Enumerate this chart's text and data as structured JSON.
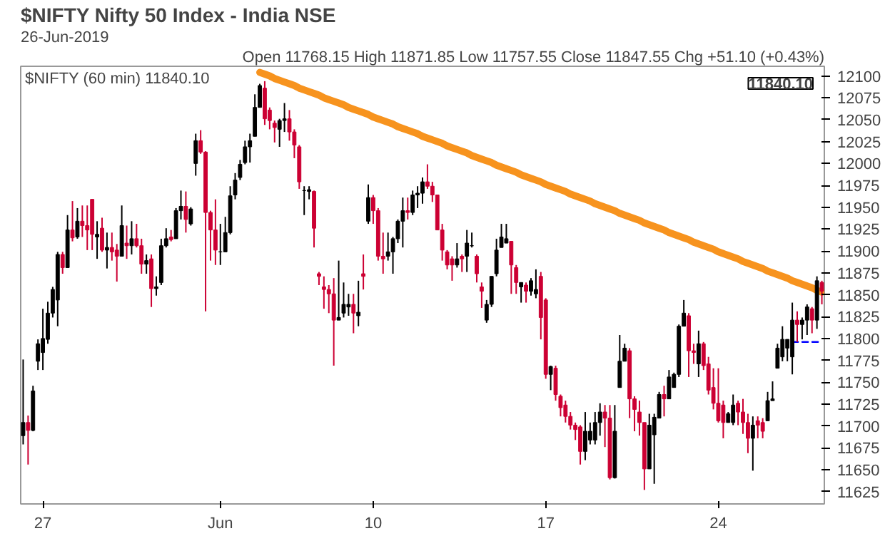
{
  "chart_data": {
    "type": "candlestick",
    "title": "$NIFTY Nifty 50 Index - India NSE",
    "subtitle": "26-Jun-2019",
    "annotations": [
      "Open 11768.15 High 11871.85 Low 11757.55 Close 11847.55 Chg +51.10 (+0.43%)",
      "$NIFTY (60 min) 11840.10",
      "11840.10"
    ],
    "categories": [
      null,
      null,
      null,
      null,
      "27",
      null,
      null,
      null,
      null,
      null,
      null,
      null,
      null,
      null,
      null,
      null,
      null,
      null,
      null,
      null,
      null,
      null,
      null,
      null,
      null,
      null,
      null,
      null,
      null,
      null,
      null,
      null,
      null,
      null,
      null,
      null,
      null,
      null,
      null,
      null,
      "Jun",
      null,
      null,
      null,
      null,
      null,
      null,
      null,
      null,
      null,
      null,
      null,
      null,
      null,
      null,
      null,
      null,
      null,
      null,
      null,
      null,
      null,
      null,
      null,
      null,
      null,
      null,
      null,
      null,
      null,
      null,
      "10",
      null,
      null,
      null,
      null,
      null,
      null,
      null,
      null,
      null,
      null,
      null,
      null,
      null,
      null,
      null,
      null,
      null,
      null,
      null,
      null,
      null,
      null,
      null,
      null,
      null,
      null,
      null,
      null,
      null,
      null,
      null,
      null,
      null,
      null,
      "17",
      null,
      null,
      null,
      null,
      null,
      null,
      null,
      null,
      null,
      null,
      null,
      null,
      null,
      null,
      null,
      null,
      null,
      null,
      null,
      null,
      null,
      null,
      null,
      null,
      null,
      null,
      null,
      null,
      null,
      null,
      null,
      null,
      null,
      null,
      "24",
      null,
      null,
      null,
      null,
      null,
      null,
      null,
      null,
      null,
      null,
      null,
      null,
      null,
      null,
      null,
      null,
      null,
      null,
      null,
      null,
      null
    ],
    "ohlc": [
      [
        11689,
        11776,
        11679,
        11704
      ],
      [
        11704,
        11712,
        11656,
        11695
      ],
      [
        11695,
        11746,
        11694,
        11740
      ],
      [
        11774,
        11799,
        11764,
        11794
      ],
      [
        11784,
        11834,
        11764,
        11800
      ],
      [
        11799,
        11842,
        11794,
        11829
      ],
      [
        11829,
        11859,
        11824,
        11856
      ],
      [
        11844,
        11899,
        11814,
        11896
      ],
      [
        11896,
        11899,
        11874,
        11881
      ],
      [
        11881,
        11941,
        11881,
        11924
      ],
      [
        11924,
        11957,
        11911,
        11915
      ],
      [
        11916,
        11949,
        11914,
        11934
      ],
      [
        11934,
        11952,
        11916,
        11929
      ],
      [
        11929,
        11952,
        11901,
        11924
      ],
      [
        11959,
        11959,
        11901,
        11919
      ],
      [
        11916,
        11934,
        11891,
        11919
      ],
      [
        11926,
        11938,
        11899,
        11901
      ],
      [
        11901,
        11921,
        11880,
        11904
      ],
      [
        11904,
        11921,
        11889,
        11899
      ],
      [
        11901,
        11908,
        11865,
        11894
      ],
      [
        11894,
        11952,
        11894,
        11929
      ],
      [
        11909,
        11929,
        11891,
        11906
      ],
      [
        11906,
        11934,
        11896,
        11914
      ],
      [
        11914,
        11931,
        11904,
        11906
      ],
      [
        11906,
        11914,
        11874,
        11885
      ],
      [
        11885,
        11896,
        11874,
        11889
      ],
      [
        11891,
        11896,
        11836,
        11857
      ],
      [
        11857,
        11871,
        11849,
        11859
      ],
      [
        11864,
        11914,
        11861,
        11906
      ],
      [
        11906,
        11926,
        11904,
        11914
      ],
      [
        11916,
        11924,
        11911,
        11913
      ],
      [
        11914,
        11949,
        11914,
        11946
      ],
      [
        11946,
        11969,
        11936,
        11951
      ],
      [
        11951,
        11968,
        11921,
        11936
      ],
      [
        11931,
        11950,
        11929,
        11948
      ],
      [
        12000,
        12034,
        11986,
        12026
      ],
      [
        12026,
        12038,
        12011,
        12013
      ],
      [
        12013,
        12014,
        11831,
        11944
      ],
      [
        11944,
        11946,
        11889,
        11924
      ],
      [
        11924,
        11959,
        11884,
        11901
      ],
      [
        11899,
        11931,
        11884,
        11899
      ],
      [
        11899,
        11939,
        11899,
        11921
      ],
      [
        11921,
        11974,
        11919,
        11963
      ],
      [
        11964,
        11989,
        11959,
        11981
      ],
      [
        11984,
        12004,
        11981,
        11999
      ],
      [
        12001,
        12026,
        11999,
        12019
      ],
      [
        12019,
        12034,
        12001,
        12026
      ],
      [
        12031,
        12079,
        12031,
        12064
      ],
      [
        12064,
        12091,
        12064,
        12089
      ],
      [
        12086,
        12094,
        12044,
        12051
      ],
      [
        12061,
        12064,
        12039,
        12049
      ],
      [
        12046,
        12049,
        12024,
        12041
      ],
      [
        12039,
        12051,
        12019,
        12049
      ],
      [
        12049,
        12069,
        12036,
        12051
      ],
      [
        12051,
        12061,
        12026,
        12036
      ],
      [
        12036,
        12039,
        12006,
        12021
      ],
      [
        12019,
        12021,
        11971,
        11979
      ],
      [
        11969,
        11974,
        11941,
        11969
      ],
      [
        11968,
        11974,
        11959,
        11970
      ],
      [
        11968,
        11969,
        11904,
        11926
      ],
      [
        11874,
        11876,
        11861,
        11871
      ],
      [
        11859,
        11871,
        11834,
        11856
      ],
      [
        11856,
        11861,
        11829,
        11851
      ],
      [
        11851,
        11869,
        11769,
        11821
      ],
      [
        11821,
        11889,
        11821,
        11824
      ],
      [
        11829,
        11864,
        11824,
        11839
      ],
      [
        11836,
        11851,
        11826,
        11839
      ],
      [
        11839,
        11851,
        11806,
        11829
      ],
      [
        11826,
        11866,
        11814,
        11830
      ],
      [
        11874,
        11896,
        11856,
        11871
      ],
      [
        11934,
        11976,
        11931,
        11961
      ],
      [
        11961,
        11964,
        11931,
        11946
      ],
      [
        11946,
        11949,
        11889,
        11894
      ],
      [
        11894,
        11921,
        11874,
        11891
      ],
      [
        11894,
        11921,
        11889,
        11899
      ],
      [
        11899,
        11916,
        11874,
        11914
      ],
      [
        11914,
        11936,
        11909,
        11934
      ],
      [
        11934,
        11961,
        11904,
        11946
      ],
      [
        11946,
        11961,
        11936,
        11944
      ],
      [
        11944,
        11969,
        11941,
        11964
      ],
      [
        11964,
        11974,
        11949,
        11966
      ],
      [
        11966,
        11984,
        11954,
        11979
      ],
      [
        11979,
        11999,
        11971,
        11974
      ],
      [
        11974,
        11979,
        11956,
        11964
      ],
      [
        11964,
        11964,
        11924,
        11924
      ],
      [
        11924,
        11931,
        11889,
        11901
      ],
      [
        11899,
        11901,
        11879,
        11884
      ],
      [
        11891,
        11894,
        11866,
        11884
      ],
      [
        11884,
        11909,
        11881,
        11891
      ],
      [
        11894,
        11896,
        11876,
        11891
      ],
      [
        11894,
        11924,
        11876,
        11909
      ],
      [
        11906,
        11921,
        11904,
        11906
      ],
      [
        11894,
        11896,
        11864,
        11874
      ],
      [
        11859,
        11864,
        11835,
        11854
      ],
      [
        11821,
        11844,
        11818,
        11839
      ],
      [
        11839,
        11871,
        11836,
        11871
      ],
      [
        11874,
        11914,
        11871,
        11901
      ],
      [
        11904,
        11931,
        11904,
        11916
      ],
      [
        11909,
        11931,
        11909,
        11914
      ],
      [
        11911,
        11911,
        11851,
        11884
      ],
      [
        11881,
        11884,
        11851,
        11864
      ],
      [
        11859,
        11864,
        11841,
        11864
      ],
      [
        11861,
        11864,
        11841,
        11854
      ],
      [
        11854,
        11869,
        11849,
        11866
      ],
      [
        11851,
        11879,
        11846,
        11856
      ],
      [
        11871,
        11876,
        11799,
        11824
      ],
      [
        11844,
        11846,
        11754,
        11759
      ],
      [
        11759,
        11769,
        11741,
        11768
      ],
      [
        11766,
        11769,
        11729,
        11736
      ],
      [
        11734,
        11736,
        11711,
        11721
      ],
      [
        11724,
        11729,
        11704,
        11711
      ],
      [
        11711,
        11716,
        11696,
        11701
      ],
      [
        11701,
        11704,
        11684,
        11696
      ],
      [
        11699,
        11701,
        11656,
        11671
      ],
      [
        11671,
        11716,
        11661,
        11694
      ],
      [
        11684,
        11704,
        11679,
        11694
      ],
      [
        11684,
        11716,
        11679,
        11704
      ],
      [
        11704,
        11726,
        11689,
        11716
      ],
      [
        11716,
        11724,
        11676,
        11709
      ],
      [
        11709,
        11724,
        11639,
        11641
      ],
      [
        11641,
        11724,
        11640,
        11694
      ],
      [
        11744,
        11804,
        11744,
        11774
      ],
      [
        11774,
        11794,
        11774,
        11789
      ],
      [
        11786,
        11789,
        11709,
        11731
      ],
      [
        11731,
        11734,
        11694,
        11719
      ],
      [
        11716,
        11729,
        11689,
        11704
      ],
      [
        11704,
        11704,
        11627,
        11651
      ],
      [
        11651,
        11714,
        11651,
        11701
      ],
      [
        11690,
        11714,
        11634,
        11710
      ],
      [
        11709,
        11739,
        11709,
        11736
      ],
      [
        11736,
        11746,
        11711,
        11731
      ],
      [
        11731,
        11764,
        11731,
        11756
      ],
      [
        11744,
        11761,
        11744,
        11759
      ],
      [
        11759,
        11816,
        11756,
        11814
      ],
      [
        11814,
        11844,
        11814,
        11829
      ],
      [
        11826,
        11829,
        11756,
        11786
      ],
      [
        11786,
        11794,
        11771,
        11784
      ],
      [
        11771,
        11809,
        11756,
        11794
      ],
      [
        11794,
        11796,
        11764,
        11769
      ],
      [
        11771,
        11779,
        11736,
        11741
      ],
      [
        11744,
        11766,
        11719,
        11726
      ],
      [
        11726,
        11766,
        11704,
        11706
      ],
      [
        11724,
        11729,
        11686,
        11704
      ],
      [
        11704,
        11716,
        11704,
        11714
      ],
      [
        11704,
        11736,
        11701,
        11724
      ],
      [
        11726,
        11729,
        11701,
        11716
      ],
      [
        11716,
        11731,
        11691,
        11704
      ],
      [
        11704,
        11714,
        11669,
        11686
      ],
      [
        11686,
        11711,
        11649,
        11701
      ],
      [
        11706,
        11711,
        11686,
        11701
      ],
      [
        11704,
        11709,
        11686,
        11694
      ],
      [
        11706,
        11739,
        11706,
        11729
      ],
      [
        11729,
        11751,
        11729,
        11731
      ],
      [
        11766,
        11794,
        11766,
        11789
      ],
      [
        11779,
        11814,
        11774,
        11799
      ],
      [
        11789,
        11799,
        11774,
        11799
      ],
      [
        11779,
        11841,
        11759,
        11821
      ],
      [
        11821,
        11831,
        11796,
        11816
      ],
      [
        11816,
        11824,
        11799,
        11821
      ],
      [
        11821,
        11839,
        11804,
        11836
      ],
      [
        11834,
        11836,
        11806,
        11821
      ],
      [
        11821,
        11871,
        11811,
        11866
      ],
      [
        11864,
        11866,
        11839,
        11854
      ]
    ],
    "colors": [
      "#000000",
      "#cc0033",
      "#000000",
      "#000000",
      "#000000",
      "#000000",
      "#000000",
      "#000000",
      "#cc0033",
      "#000000",
      "#cc0033",
      "#000000",
      "#cc0033",
      "#cc0033",
      "#cc0033",
      "#000000",
      "#cc0033",
      "#000000",
      "#cc0033",
      "#cc0033",
      "#000000",
      "#cc0033",
      "#000000",
      "#cc0033",
      "#cc0033",
      "#000000",
      "#cc0033",
      "#000000",
      "#000000",
      "#000000",
      "#cc0033",
      "#000000",
      "#000000",
      "#cc0033",
      "#000000",
      "#000000",
      "#cc0033",
      "#cc0033",
      "#cc0033",
      "#cc0033",
      "#000000",
      "#000000",
      "#000000",
      "#000000",
      "#000000",
      "#000000",
      "#000000",
      "#000000",
      "#000000",
      "#cc0033",
      "#cc0033",
      "#cc0033",
      "#000000",
      "#000000",
      "#cc0033",
      "#cc0033",
      "#cc0033",
      "#000000",
      "#000000",
      "#cc0033",
      "#cc0033",
      "#cc0033",
      "#cc0033",
      "#cc0033",
      "#000000",
      "#000000",
      "#000000",
      "#cc0033",
      "#000000",
      "#cc0033",
      "#000000",
      "#cc0033",
      "#cc0033",
      "#cc0033",
      "#000000",
      "#000000",
      "#000000",
      "#000000",
      "#cc0033",
      "#000000",
      "#000000",
      "#000000",
      "#cc0033",
      "#cc0033",
      "#cc0033",
      "#cc0033",
      "#cc0033",
      "#cc0033",
      "#000000",
      "#cc0033",
      "#000000",
      "#000000",
      "#cc0033",
      "#cc0033",
      "#000000",
      "#000000",
      "#000000",
      "#000000",
      "#000000",
      "#cc0033",
      "#cc0033",
      "#000000",
      "#cc0033",
      "#000000",
      "#000000",
      "#cc0033",
      "#cc0033",
      "#000000",
      "#cc0033",
      "#cc0033",
      "#cc0033",
      "#cc0033",
      "#cc0033",
      "#cc0033",
      "#000000",
      "#000000",
      "#000000",
      "#000000",
      "#cc0033",
      "#cc0033",
      "#000000",
      "#000000",
      "#000000",
      "#cc0033",
      "#cc0033",
      "#cc0033",
      "#cc0033",
      "#000000",
      "#000000",
      "#000000",
      "#cc0033",
      "#000000",
      "#000000",
      "#000000",
      "#000000",
      "#cc0033",
      "#cc0033",
      "#000000",
      "#cc0033",
      "#cc0033",
      "#cc0033",
      "#cc0033",
      "#cc0033",
      "#000000",
      "#000000",
      "#cc0033",
      "#cc0033",
      "#cc0033",
      "#000000",
      "#cc0033",
      "#cc0033",
      "#000000",
      "#000000",
      "#000000",
      "#000000",
      "#000000",
      "#000000",
      "#cc0033",
      "#000000",
      "#000000",
      "#cc0033",
      "#000000",
      "#cc0033"
    ],
    "series": [
      {
        "type": "line",
        "color": "#f7931e",
        "values": [
          null,
          null,
          null,
          null,
          null,
          null,
          null,
          null,
          null,
          null,
          null,
          null,
          null,
          null,
          null,
          null,
          null,
          null,
          null,
          null,
          null,
          null,
          null,
          null,
          null,
          null,
          null,
          null,
          null,
          null,
          null,
          null,
          null,
          null,
          null,
          null,
          null,
          null,
          null,
          null,
          null,
          null,
          null,
          null,
          null,
          null,
          null,
          null,
          12104,
          12102,
          12100,
          12097,
          12095,
          12093,
          12091,
          12089,
          12086,
          12084,
          12082,
          12080,
          12078,
          12075,
          12073,
          12071,
          12069,
          12067,
          12064,
          12062,
          12060,
          12058,
          12056,
          12053,
          12051,
          12049,
          12047,
          12045,
          12042,
          12040,
          12038,
          12036,
          12034,
          12031,
          12029,
          12027,
          12025,
          12023,
          12020,
          12018,
          12016,
          12014,
          12012,
          12009,
          12007,
          12005,
          12003,
          12001,
          11998,
          11996,
          11994,
          11992,
          11990,
          11987,
          11985,
          11983,
          11981,
          11979,
          11976,
          11974,
          11972,
          11970,
          11968,
          11965,
          11963,
          11961,
          11959,
          11957,
          11954,
          11952,
          11950,
          11948,
          11946,
          11943,
          11941,
          11939,
          11937,
          11935,
          11932,
          11930,
          11928,
          11926,
          11924,
          11921,
          11919,
          11917,
          11915,
          11913,
          11910,
          11908,
          11906,
          11904,
          11902,
          11899,
          11897,
          11895,
          11893,
          11891,
          11888,
          11886,
          11884,
          11882,
          11880,
          11877,
          11875,
          11873,
          11871,
          11869,
          11866,
          11864,
          11862,
          11860,
          11858,
          11855,
          11853
        ]
      },
      {
        "type": "line",
        "color": "#0000ff",
        "line_style": "dashed",
        "values": [
          null,
          null,
          null,
          null,
          null,
          null,
          null,
          null,
          null,
          null,
          null,
          null,
          null,
          null,
          null,
          null,
          null,
          null,
          null,
          null,
          null,
          null,
          null,
          null,
          null,
          null,
          null,
          null,
          null,
          null,
          null,
          null,
          null,
          null,
          null,
          null,
          null,
          null,
          null,
          null,
          null,
          null,
          null,
          null,
          null,
          null,
          null,
          null,
          null,
          null,
          null,
          null,
          null,
          null,
          null,
          null,
          null,
          null,
          null,
          null,
          null,
          null,
          null,
          null,
          null,
          null,
          null,
          null,
          null,
          null,
          null,
          null,
          null,
          null,
          null,
          null,
          null,
          null,
          null,
          null,
          null,
          null,
          null,
          null,
          null,
          null,
          null,
          null,
          null,
          null,
          null,
          null,
          null,
          null,
          null,
          null,
          null,
          null,
          null,
          null,
          null,
          null,
          null,
          null,
          null,
          null,
          null,
          null,
          null,
          null,
          null,
          null,
          null,
          null,
          null,
          null,
          null,
          null,
          null,
          null,
          null,
          null,
          null,
          null,
          null,
          null,
          null,
          null,
          null,
          null,
          null,
          null,
          null,
          null,
          null,
          null,
          null,
          null,
          null,
          null,
          null,
          null,
          null,
          null,
          null,
          null,
          null,
          null,
          null,
          null,
          null,
          null,
          null,
          null,
          null,
          null,
          11796,
          11796,
          11796,
          11796,
          11796,
          11796,
          11796
        ]
      }
    ],
    "ylim": [
      11611,
      12111
    ],
    "yticks": [
      11625,
      11650,
      11675,
      11700,
      11725,
      11750,
      11775,
      11800,
      11825,
      11850,
      11875,
      11900,
      11925,
      11950,
      11975,
      12000,
      12025,
      12050,
      12075,
      12100
    ],
    "grid": false
  }
}
